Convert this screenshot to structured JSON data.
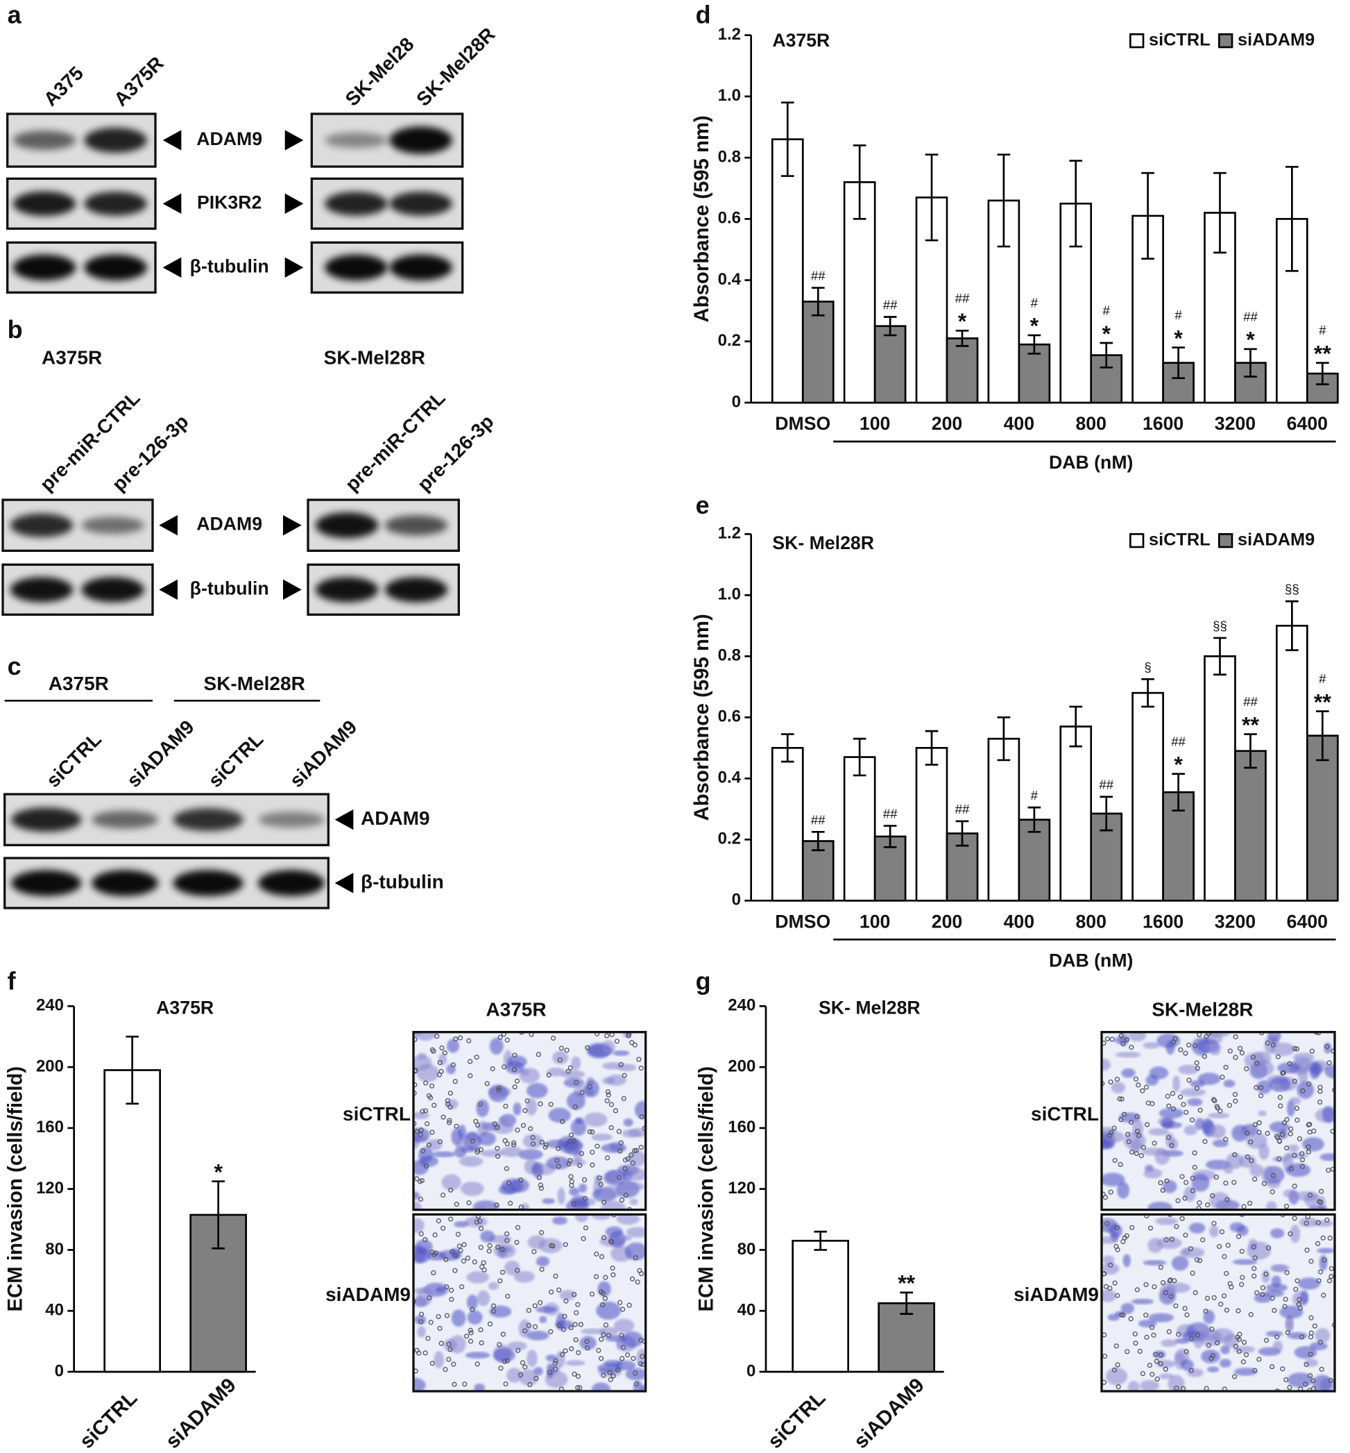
{
  "panels": [
    "a",
    "b",
    "c",
    "d",
    "e",
    "f",
    "g"
  ],
  "blot_a": {
    "left_lanes": [
      "A375",
      "A375R"
    ],
    "right_lanes": [
      "SK-Mel28",
      "SK-Mel28R"
    ],
    "proteins": [
      "ADAM9",
      "PIK3R2",
      "β-tubulin"
    ]
  },
  "blot_b": {
    "groups": [
      "A375R",
      "SK-Mel28R"
    ],
    "lanes": [
      "pre-miR-CTRL",
      "pre-126-3p"
    ],
    "proteins": [
      "ADAM9",
      "β-tubulin"
    ]
  },
  "blot_c": {
    "groups": [
      "A375R",
      "SK-Mel28R"
    ],
    "lanes": [
      "siCTRL",
      "siADAM9",
      "siCTRL",
      "siADAM9"
    ],
    "proteins": [
      "ADAM9",
      "β-tubulin"
    ]
  },
  "images": [
    {
      "title": "A375R",
      "rows": [
        "siCTRL",
        "siADAM9"
      ]
    },
    {
      "title": "SK-Mel28R",
      "rows": [
        "siCTRL",
        "siADAM9"
      ]
    }
  ],
  "chart_data": [
    {
      "type": "bar",
      "title": "A375R",
      "x_label": "DAB (nM)",
      "y_label": "Absorbance (595 nm)",
      "categories": [
        "DMSO",
        "100",
        "200",
        "400",
        "800",
        "1600",
        "3200",
        "6400"
      ],
      "series": [
        {
          "name": "siCTRL",
          "color": "#ffffff",
          "values": [
            0.86,
            0.72,
            0.67,
            0.66,
            0.65,
            0.61,
            0.62,
            0.6
          ],
          "errors": [
            0.12,
            0.12,
            0.14,
            0.15,
            0.14,
            0.14,
            0.13,
            0.17
          ],
          "annotations": [
            null,
            null,
            null,
            null,
            null,
            null,
            null,
            null
          ]
        },
        {
          "name": "siADAM9",
          "color": "#808080",
          "values": [
            0.33,
            0.25,
            0.21,
            0.19,
            0.155,
            0.13,
            0.13,
            0.095
          ],
          "errors": [
            0.045,
            0.03,
            0.025,
            0.03,
            0.04,
            0.05,
            0.045,
            0.035
          ],
          "annotations": [
            [
              "##"
            ],
            [
              "##"
            ],
            [
              "##",
              "*"
            ],
            [
              "#",
              "*"
            ],
            [
              "#",
              "*"
            ],
            [
              "#",
              "*"
            ],
            [
              "##",
              "*"
            ],
            [
              "#",
              "**"
            ]
          ]
        }
      ],
      "ylim": [
        0,
        1.2
      ],
      "yticks": [
        0,
        0.2,
        0.4,
        0.6,
        0.8,
        {
          "value": 1,
          "label": "1.0"
        },
        1.2
      ],
      "legend": "top-right"
    },
    {
      "type": "bar",
      "title": "SK- Mel28R",
      "x_label": "DAB (nM)",
      "y_label": "Absorbance (595 nm)",
      "categories": [
        "DMSO",
        "100",
        "200",
        "400",
        "800",
        "1600",
        "3200",
        "6400"
      ],
      "series": [
        {
          "name": "siCTRL",
          "color": "#ffffff",
          "values": [
            0.5,
            0.47,
            0.5,
            0.53,
            0.57,
            0.68,
            0.8,
            0.9
          ],
          "errors": [
            0.045,
            0.06,
            0.055,
            0.07,
            0.065,
            0.045,
            0.06,
            0.08
          ],
          "annotations": [
            null,
            null,
            null,
            null,
            null,
            [
              "§"
            ],
            [
              "§§"
            ],
            [
              "§§"
            ]
          ]
        },
        {
          "name": "siADAM9",
          "color": "#808080",
          "values": [
            0.195,
            0.21,
            0.22,
            0.265,
            0.285,
            0.355,
            0.49,
            0.54
          ],
          "errors": [
            0.03,
            0.035,
            0.04,
            0.04,
            0.055,
            0.06,
            0.055,
            0.08
          ],
          "annotations": [
            [
              "##"
            ],
            [
              "##"
            ],
            [
              "##"
            ],
            [
              "#"
            ],
            [
              "##"
            ],
            [
              "##",
              "*"
            ],
            [
              "##",
              "**"
            ],
            [
              "#",
              "**"
            ]
          ]
        }
      ],
      "ylim": [
        0,
        1.2
      ],
      "yticks": [
        0,
        0.2,
        0.4,
        0.6,
        0.8,
        {
          "value": 1,
          "label": "1.0"
        },
        1.2
      ],
      "legend": "top-right"
    },
    {
      "type": "bar",
      "title": "A375R",
      "y_label": "ECM invasion (cells/field)",
      "categories": [
        "siCTRL",
        "siADAM9"
      ],
      "values": [
        198,
        103
      ],
      "errors": [
        22,
        22
      ],
      "colors": [
        "#ffffff",
        "#808080"
      ],
      "annotations": [
        null,
        [
          "*"
        ]
      ],
      "ylim": [
        0,
        240
      ],
      "yticks": [
        0,
        40,
        80,
        120,
        160,
        200,
        240
      ]
    },
    {
      "type": "bar",
      "title": "SK- Mel28R",
      "y_label": "ECM invasion (cells/field)",
      "categories": [
        "siCTRL",
        "siADAM9"
      ],
      "values": [
        86,
        45
      ],
      "errors": [
        6,
        7
      ],
      "colors": [
        "#ffffff",
        "#808080"
      ],
      "annotations": [
        null,
        [
          "**"
        ]
      ],
      "ylim": [
        0,
        240
      ],
      "yticks": [
        0,
        40,
        80,
        120,
        160,
        200,
        240
      ]
    }
  ]
}
